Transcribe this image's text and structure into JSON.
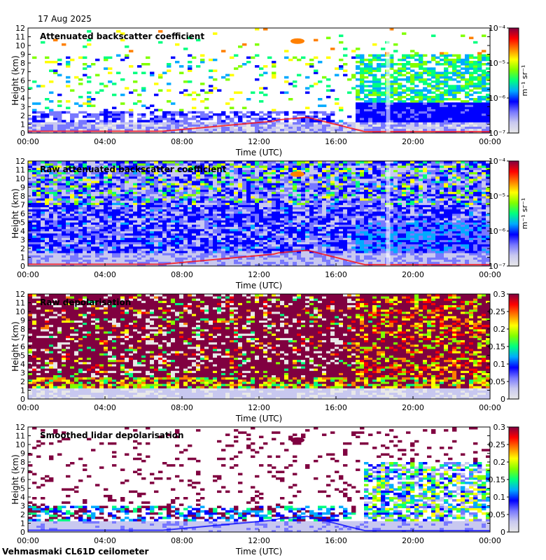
{
  "date": "17 Aug 2025",
  "site": "Vehmasmaki CL61D ceilometer",
  "chart_data": [
    {
      "type": "heatmap",
      "title": "Attenuated backscatter coefficient",
      "xlabel": "Time (UTC)",
      "ylabel": "Height (km)",
      "x_ticks": [
        "00:00",
        "04:00",
        "08:00",
        "12:00",
        "16:00",
        "20:00",
        "00:00"
      ],
      "y_ticks": [
        "0",
        "1",
        "2",
        "3",
        "4",
        "5",
        "6",
        "7",
        "8",
        "9",
        "10",
        "11",
        "12"
      ],
      "ylim": [
        0,
        12
      ],
      "colorbar": {
        "scale": "log",
        "unit": "m⁻¹ sr⁻¹",
        "ticks": [
          "10⁻⁴",
          "10⁻⁵",
          "10⁻⁶",
          "10⁻⁷"
        ],
        "range": [
          1e-07,
          0.0001
        ]
      },
      "colormap": [
        "#e8e8e8",
        "#c8c8f0",
        "#7878ff",
        "#0000ff",
        "#00aaff",
        "#00ff80",
        "#80ff00",
        "#ffff00",
        "#ff8000",
        "#ff0000",
        "#800040"
      ]
    },
    {
      "type": "heatmap",
      "title": "Raw attenuated backscatter coefficient",
      "xlabel": "Time (UTC)",
      "ylabel": "Height (km)",
      "x_ticks": [
        "00:00",
        "04:00",
        "08:00",
        "12:00",
        "16:00",
        "20:00",
        "00:00"
      ],
      "y_ticks": [
        "0",
        "1",
        "2",
        "3",
        "4",
        "5",
        "6",
        "7",
        "8",
        "9",
        "10",
        "11",
        "12"
      ],
      "ylim": [
        0,
        12
      ],
      "colorbar": {
        "scale": "log",
        "unit": "m⁻¹ sr⁻¹",
        "ticks": [
          "10⁻⁴",
          "10⁻⁵",
          "10⁻⁶",
          "10⁻⁷"
        ],
        "range": [
          1e-07,
          0.0001
        ]
      },
      "colormap": [
        "#e8e8e8",
        "#c8c8f0",
        "#7878ff",
        "#0000ff",
        "#00aaff",
        "#00ff80",
        "#80ff00",
        "#ffff00",
        "#ff8000",
        "#ff0000",
        "#800040"
      ]
    },
    {
      "type": "heatmap",
      "title": "Raw depolarisation",
      "xlabel": "Time (UTC)",
      "ylabel": "Height (km)",
      "x_ticks": [
        "00:00",
        "04:00",
        "08:00",
        "12:00",
        "16:00",
        "20:00",
        "00:00"
      ],
      "y_ticks": [
        "0",
        "1",
        "2",
        "3",
        "4",
        "5",
        "6",
        "7",
        "8",
        "9",
        "10",
        "11",
        "12"
      ],
      "ylim": [
        0,
        12
      ],
      "colorbar": {
        "scale": "linear",
        "unit": "",
        "ticks": [
          "0.3",
          "0.25",
          "0.2",
          "0.15",
          "0.1",
          "0.05",
          "0"
        ],
        "range": [
          0,
          0.3
        ]
      },
      "colormap": [
        "#e8e8e8",
        "#c8c8f0",
        "#7878ff",
        "#0000ff",
        "#00aaff",
        "#00ff80",
        "#80ff00",
        "#ffff00",
        "#ff8000",
        "#ff0000",
        "#800040"
      ]
    },
    {
      "type": "heatmap",
      "title": "Smoothed lidar depolarisation",
      "xlabel": "Time (UTC)",
      "ylabel": "Height (km)",
      "x_ticks": [
        "00:00",
        "04:00",
        "08:00",
        "12:00",
        "16:00",
        "20:00",
        "00:00"
      ],
      "y_ticks": [
        "0",
        "1",
        "2",
        "3",
        "4",
        "5",
        "6",
        "7",
        "8",
        "9",
        "10",
        "11",
        "12"
      ],
      "ylim": [
        0,
        12
      ],
      "colorbar": {
        "scale": "linear",
        "unit": "",
        "ticks": [
          "0.3",
          "0.25",
          "0.2",
          "0.15",
          "0.1",
          "0.05",
          "0"
        ],
        "range": [
          0,
          0.3
        ]
      },
      "colormap": [
        "#e8e8e8",
        "#c8c8f0",
        "#7878ff",
        "#0000ff",
        "#00aaff",
        "#00ff80",
        "#80ff00",
        "#ffff00",
        "#ff8000",
        "#ff0000",
        "#800040"
      ]
    }
  ]
}
